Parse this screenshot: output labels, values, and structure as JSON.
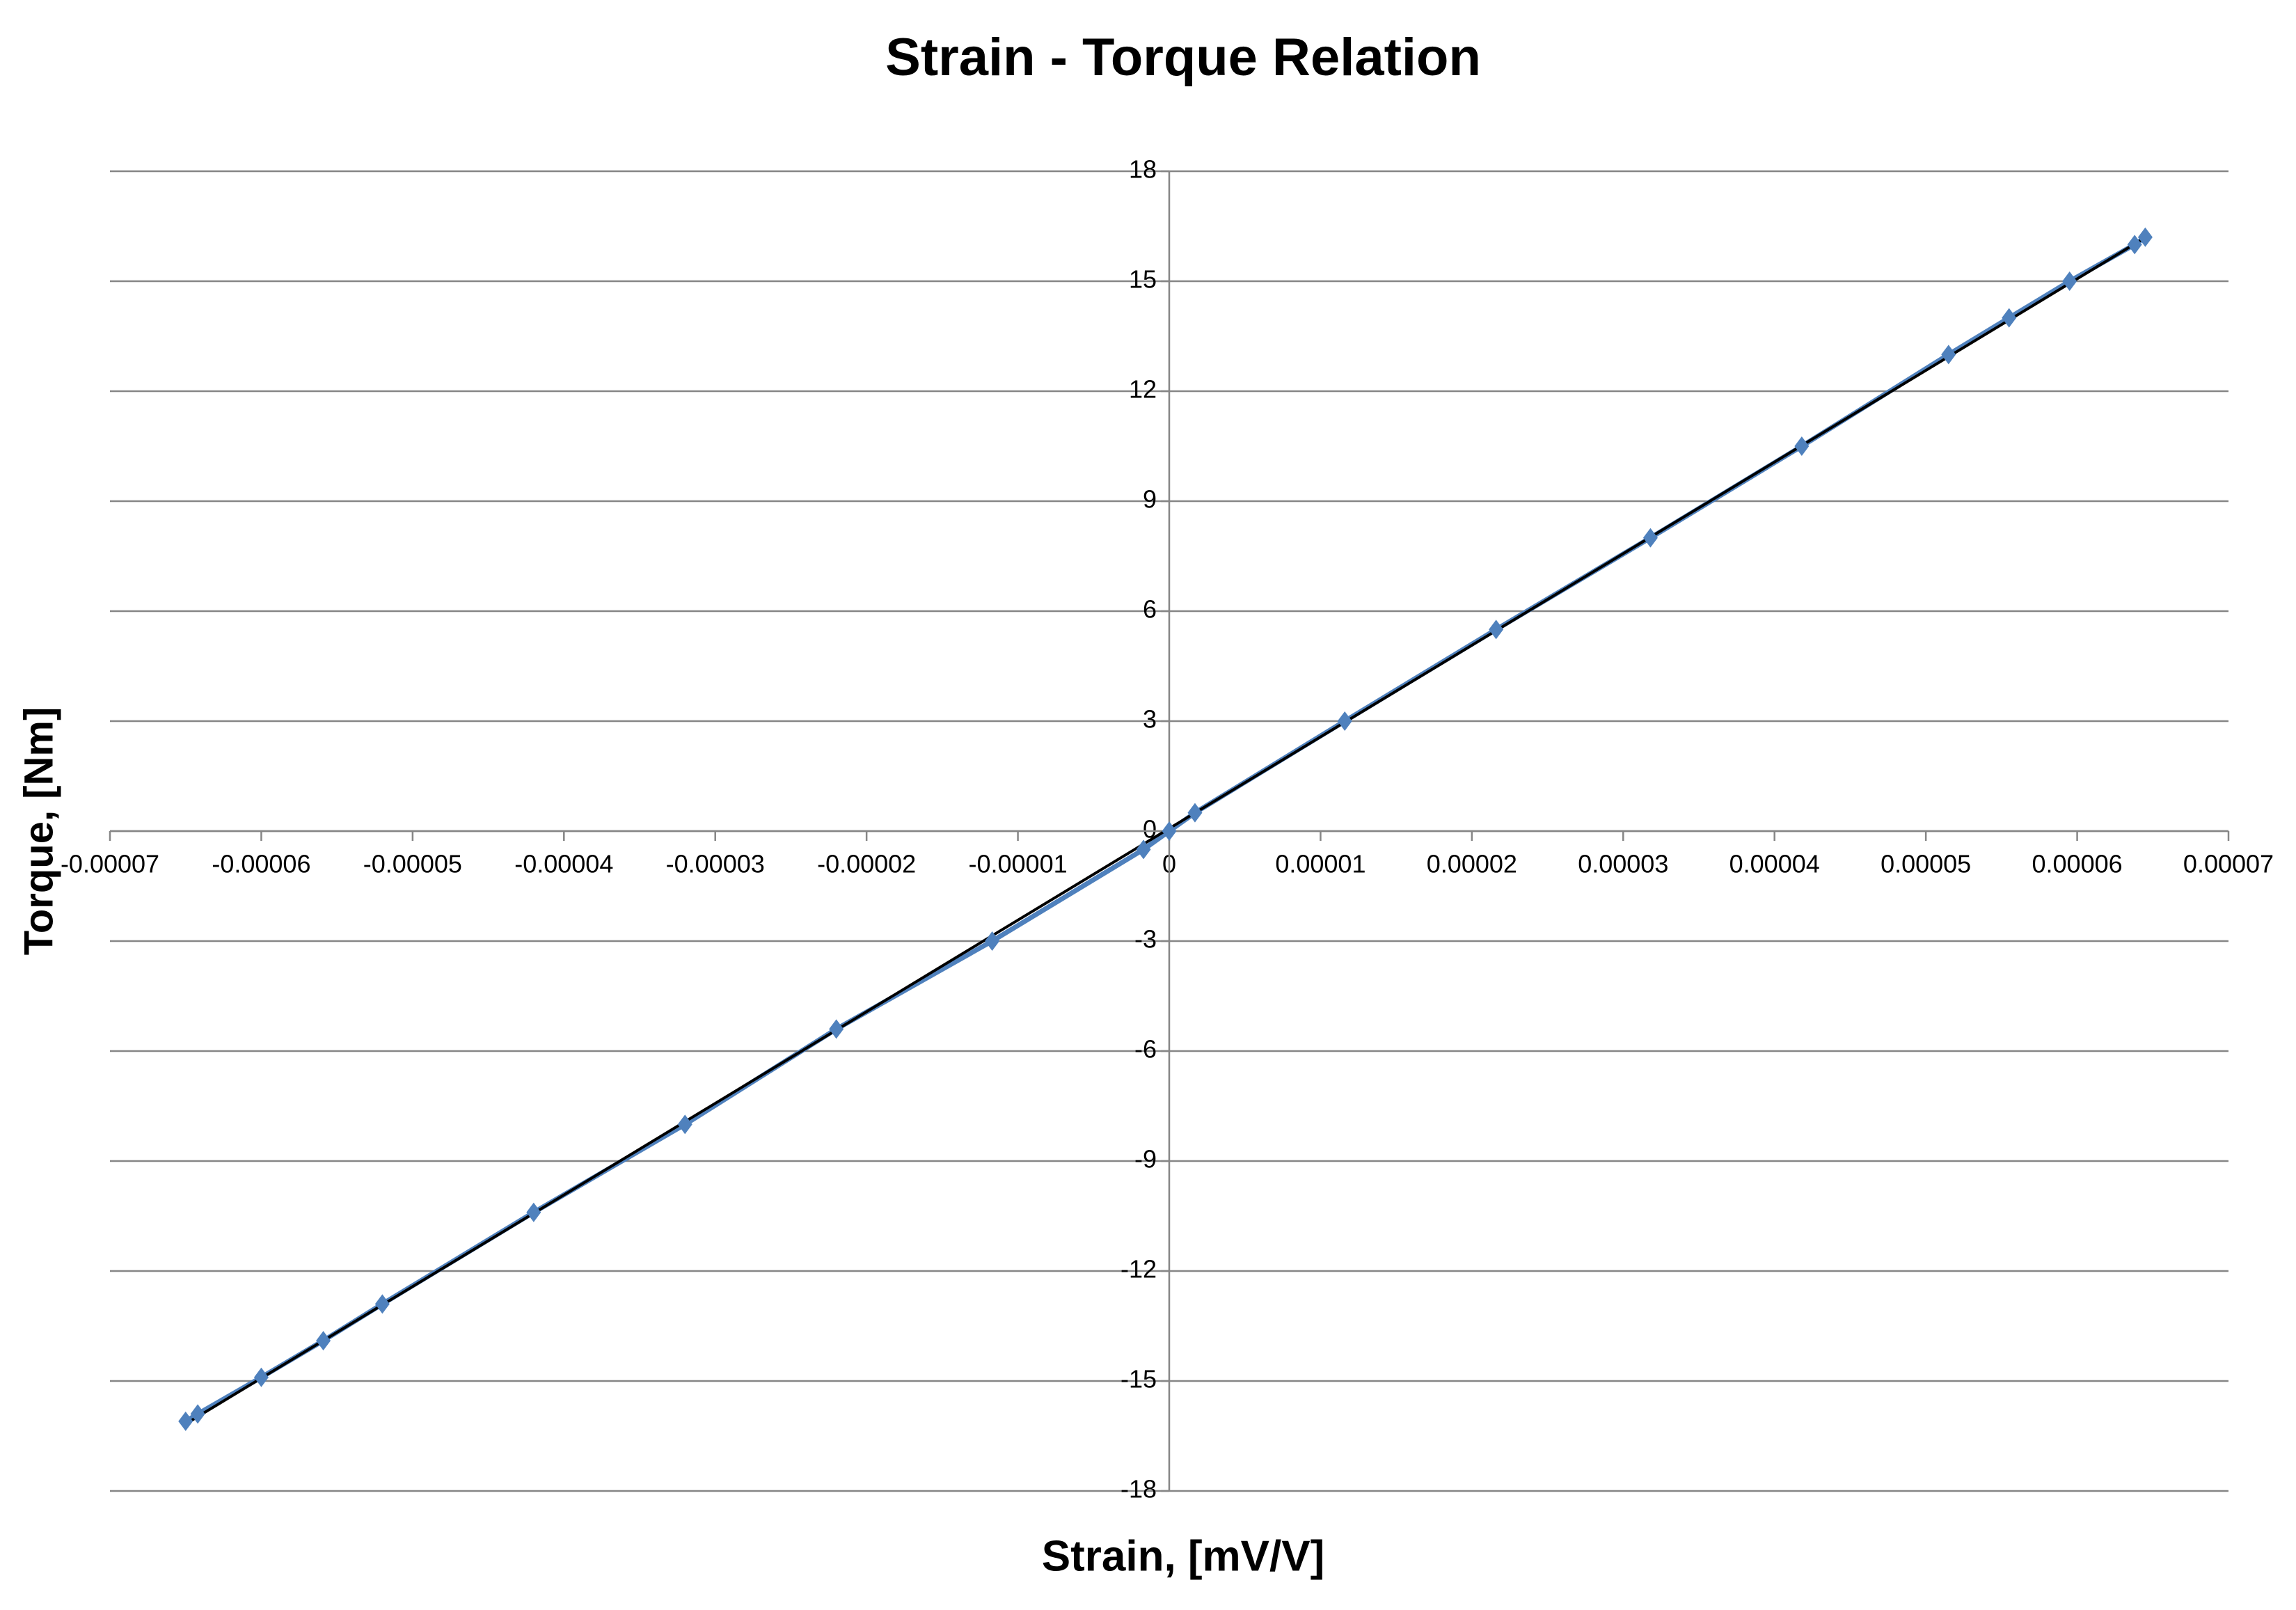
{
  "chart_data": {
    "type": "scatter",
    "title": "Strain - Torque Relation",
    "x_label": "Strain, [mV/V]",
    "y_label": "Torque, [Nm]",
    "series": [
      {
        "color": "#4f81bd",
        "x": [
          -6.5e-05,
          -6.42e-05,
          -6e-05,
          -5.59e-05,
          -5.2e-05,
          -4.2e-05,
          -3.2e-05,
          -2.2e-05,
          -1.17e-05,
          -1.7e-06,
          0,
          1.7e-06,
          1.16e-05,
          2.16e-05,
          3.18e-05,
          4.18e-05,
          5.15e-05,
          5.55e-05,
          5.95e-05,
          6.38e-05,
          6.45e-05
        ],
        "values": [
          -16.1,
          -15.9,
          -14.9,
          -13.9,
          -12.9,
          -10.4,
          -8,
          -5.4,
          -3,
          -0.5,
          0,
          0.5,
          3,
          5.5,
          8,
          10.5,
          13,
          14,
          15,
          16,
          16.2
        ]
      }
    ],
    "trendline": true,
    "trendline_color": "#000000",
    "xlim": [
      -7e-05,
      7e-05
    ],
    "xticks": [
      -7e-05,
      -6e-05,
      -5e-05,
      -4e-05,
      -3e-05,
      -2e-05,
      -1e-05,
      0,
      1e-05,
      2e-05,
      3e-05,
      4e-05,
      5e-05,
      6e-05,
      7e-05
    ],
    "ylim": [
      -18,
      18
    ],
    "yticks": [
      -18,
      -15,
      -12,
      -9,
      -6,
      -3,
      0,
      3,
      6,
      9,
      12,
      15,
      18
    ],
    "grid": true
  }
}
